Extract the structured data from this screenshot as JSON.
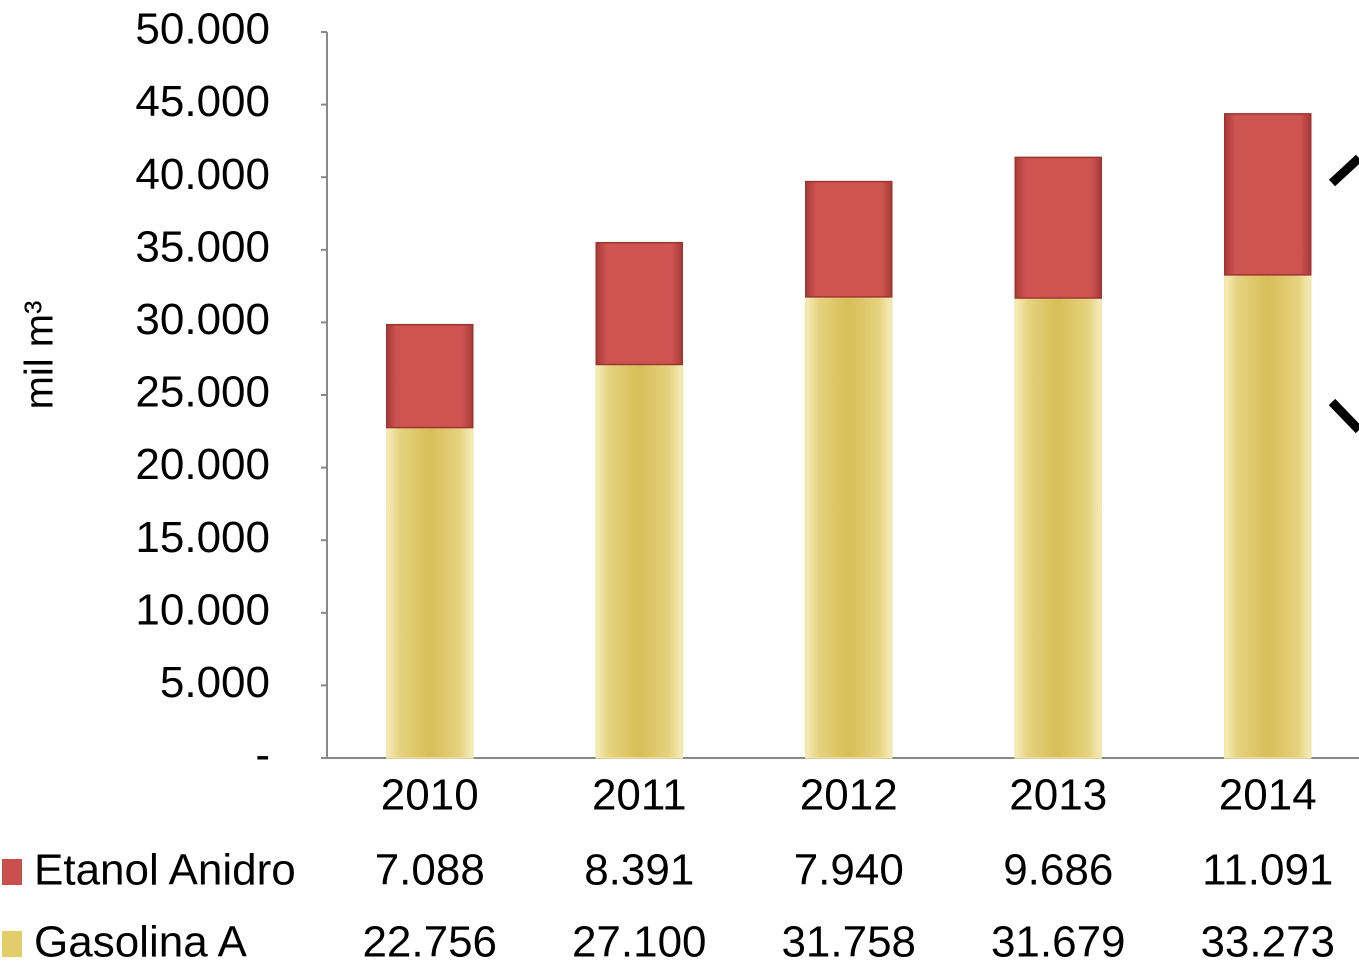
{
  "chart_data": {
    "type": "stacked_bar",
    "y_label": "mil m³",
    "categories": [
      "2010",
      "2011",
      "2012",
      "2013",
      "2014"
    ],
    "series": [
      {
        "name": "Etanol Anidro",
        "color": "#c9504c",
        "values": [
          7088,
          8391,
          7940,
          9686,
          11091
        ],
        "value_labels": [
          "7.088",
          "8.391",
          "7.940",
          "9.686",
          "11.091"
        ]
      },
      {
        "name": "Gasolina A",
        "color": "#e2cc6c",
        "values": [
          22756,
          27100,
          31758,
          31679,
          33273
        ],
        "value_labels": [
          "22.756",
          "27.100",
          "31.758",
          "31.679",
          "33.273"
        ]
      }
    ],
    "ylim": [
      0,
      50000
    ],
    "yticks": [
      {
        "value": 0,
        "label": "-"
      },
      {
        "value": 5000,
        "label": "5.000"
      },
      {
        "value": 10000,
        "label": "10.000"
      },
      {
        "value": 15000,
        "label": "15.000"
      },
      {
        "value": 20000,
        "label": "20.000"
      },
      {
        "value": 25000,
        "label": "25.000"
      },
      {
        "value": 30000,
        "label": "30.000"
      },
      {
        "value": 35000,
        "label": "35.000"
      },
      {
        "value": 40000,
        "label": "40.000"
      },
      {
        "value": 45000,
        "label": "45.000"
      },
      {
        "value": 50000,
        "label": "50.000"
      }
    ],
    "grid": false
  }
}
